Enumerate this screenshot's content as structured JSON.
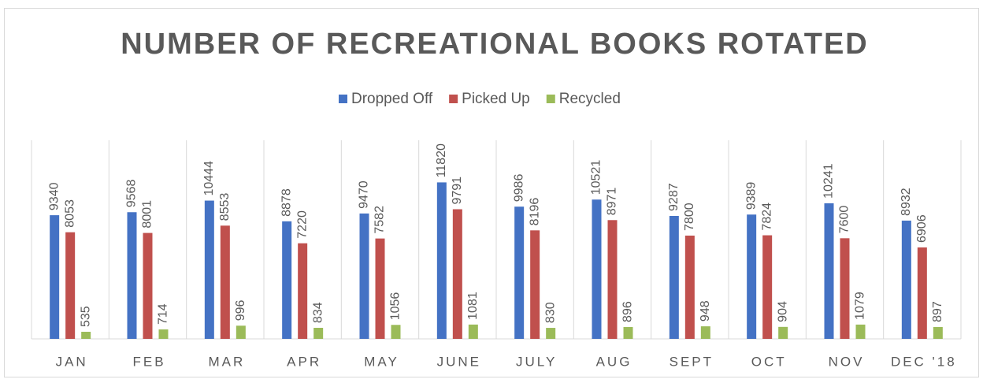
{
  "chart_data": {
    "type": "bar",
    "title": "NUMBER OF RECREATIONAL BOOKS ROTATED",
    "categories": [
      "JAN",
      "FEB",
      "MAR",
      "APR",
      "MAY",
      "JUNE",
      "JULY",
      "AUG",
      "SEPT",
      "OCT",
      "NOV",
      "DEC '18"
    ],
    "series": [
      {
        "name": "Dropped Off",
        "color": "#4472c4",
        "values": [
          9340,
          9568,
          10444,
          8878,
          9470,
          11820,
          9986,
          10521,
          9287,
          9389,
          10241,
          8932
        ]
      },
      {
        "name": "Picked Up",
        "color": "#c0504d",
        "values": [
          8053,
          8001,
          8553,
          7220,
          7582,
          9791,
          8196,
          8971,
          7800,
          7824,
          7600,
          6906
        ]
      },
      {
        "name": "Recycled",
        "color": "#9bbb59",
        "values": [
          535,
          714,
          996,
          834,
          1056,
          1081,
          830,
          896,
          948,
          904,
          1079,
          897
        ]
      }
    ],
    "ylim": [
      0,
      15000
    ],
    "legend": "top",
    "data_labels": true
  }
}
